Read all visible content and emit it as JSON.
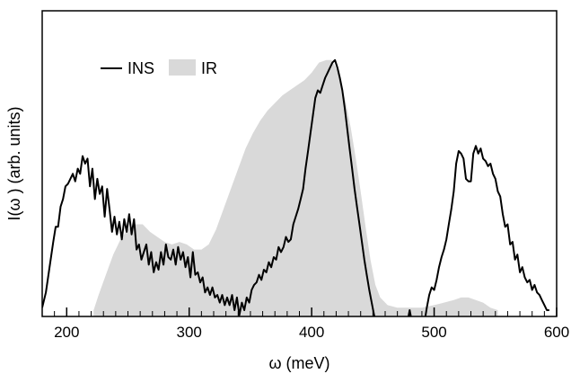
{
  "chart_data": {
    "type": "line",
    "xlabel": "ω (meV)",
    "ylabel": "I(ω ) (arb. units)",
    "xlim": [
      180,
      600
    ],
    "ylim": [
      0,
      1
    ],
    "x_ticks": [
      200,
      300,
      400,
      500,
      600
    ],
    "x_minor_step": 10,
    "legend_position": "top-left",
    "series": [
      {
        "name": "INS",
        "style": "line",
        "color": "#000000",
        "points": [
          [
            180,
            0.01
          ],
          [
            183,
            0.07
          ],
          [
            186,
            0.17
          ],
          [
            189,
            0.27
          ],
          [
            191,
            0.33
          ],
          [
            193,
            0.33
          ],
          [
            195,
            0.41
          ],
          [
            197,
            0.44
          ],
          [
            199,
            0.49
          ],
          [
            201,
            0.5
          ],
          [
            203,
            0.52
          ],
          [
            205,
            0.54
          ],
          [
            207,
            0.51
          ],
          [
            209,
            0.56
          ],
          [
            211,
            0.54
          ],
          [
            213,
            0.61
          ],
          [
            215,
            0.58
          ],
          [
            217,
            0.6
          ],
          [
            219,
            0.49
          ],
          [
            221,
            0.56
          ],
          [
            223,
            0.44
          ],
          [
            225,
            0.52
          ],
          [
            227,
            0.46
          ],
          [
            229,
            0.49
          ],
          [
            231,
            0.37
          ],
          [
            233,
            0.48
          ],
          [
            235,
            0.4
          ],
          [
            237,
            0.31
          ],
          [
            239,
            0.37
          ],
          [
            241,
            0.3
          ],
          [
            243,
            0.35
          ],
          [
            245,
            0.28
          ],
          [
            247,
            0.36
          ],
          [
            249,
            0.31
          ],
          [
            251,
            0.38
          ],
          [
            253,
            0.3
          ],
          [
            255,
            0.36
          ],
          [
            257,
            0.24
          ],
          [
            259,
            0.26
          ],
          [
            261,
            0.2
          ],
          [
            263,
            0.23
          ],
          [
            265,
            0.26
          ],
          [
            267,
            0.18
          ],
          [
            269,
            0.23
          ],
          [
            271,
            0.15
          ],
          [
            273,
            0.19
          ],
          [
            275,
            0.16
          ],
          [
            277,
            0.23
          ],
          [
            279,
            0.18
          ],
          [
            281,
            0.26
          ],
          [
            283,
            0.21
          ],
          [
            285,
            0.2
          ],
          [
            287,
            0.24
          ],
          [
            289,
            0.18
          ],
          [
            291,
            0.25
          ],
          [
            293,
            0.2
          ],
          [
            295,
            0.23
          ],
          [
            297,
            0.17
          ],
          [
            299,
            0.21
          ],
          [
            301,
            0.13
          ],
          [
            303,
            0.23
          ],
          [
            305,
            0.14
          ],
          [
            307,
            0.15
          ],
          [
            309,
            0.11
          ],
          [
            311,
            0.13
          ],
          [
            313,
            0.07
          ],
          [
            315,
            0.09
          ],
          [
            317,
            0.06
          ],
          [
            319,
            0.09
          ],
          [
            321,
            0.05
          ],
          [
            323,
            0.06
          ],
          [
            325,
            0.03
          ],
          [
            327,
            0.06
          ],
          [
            329,
            0.02
          ],
          [
            331,
            0.05
          ],
          [
            333,
            0.02
          ],
          [
            335,
            0.06
          ],
          [
            337,
            0.0
          ],
          [
            339,
            0.05
          ],
          [
            341,
            -0.02
          ],
          [
            343,
            0.03
          ],
          [
            345,
            0.0
          ],
          [
            347,
            0.05
          ],
          [
            349,
            0.03
          ],
          [
            351,
            0.08
          ],
          [
            353,
            0.1
          ],
          [
            355,
            0.11
          ],
          [
            357,
            0.14
          ],
          [
            359,
            0.12
          ],
          [
            361,
            0.16
          ],
          [
            363,
            0.15
          ],
          [
            365,
            0.19
          ],
          [
            367,
            0.17
          ],
          [
            369,
            0.21
          ],
          [
            371,
            0.2
          ],
          [
            373,
            0.25
          ],
          [
            375,
            0.23
          ],
          [
            377,
            0.25
          ],
          [
            379,
            0.29
          ],
          [
            381,
            0.27
          ],
          [
            383,
            0.28
          ],
          [
            385,
            0.34
          ],
          [
            387,
            0.37
          ],
          [
            389,
            0.4
          ],
          [
            391,
            0.44
          ],
          [
            393,
            0.48
          ],
          [
            395,
            0.56
          ],
          [
            397,
            0.63
          ],
          [
            399,
            0.7
          ],
          [
            401,
            0.77
          ],
          [
            403,
            0.84
          ],
          [
            405,
            0.87
          ],
          [
            407,
            0.86
          ],
          [
            409,
            0.89
          ],
          [
            411,
            0.92
          ],
          [
            413,
            0.94
          ],
          [
            415,
            0.96
          ],
          [
            417,
            0.98
          ],
          [
            419,
            0.99
          ],
          [
            421,
            0.96
          ],
          [
            423,
            0.92
          ],
          [
            425,
            0.87
          ],
          [
            427,
            0.8
          ],
          [
            429,
            0.72
          ],
          [
            431,
            0.64
          ],
          [
            433,
            0.56
          ],
          [
            435,
            0.48
          ],
          [
            437,
            0.41
          ],
          [
            439,
            0.34
          ],
          [
            441,
            0.27
          ],
          [
            443,
            0.2
          ],
          [
            445,
            0.14
          ],
          [
            447,
            0.08
          ],
          [
            449,
            0.03
          ],
          [
            451,
            -0.02
          ],
          [
            453,
            -0.05
          ]
        ],
        "points_b": [
          [
            478,
            -0.05
          ],
          [
            480,
            0.0
          ],
          [
            482,
            -0.05
          ]
        ],
        "points_c": [
          [
            492,
            -0.05
          ],
          [
            494,
            0.01
          ],
          [
            496,
            0.06
          ],
          [
            498,
            0.09
          ],
          [
            500,
            0.08
          ],
          [
            502,
            0.12
          ],
          [
            504,
            0.17
          ],
          [
            506,
            0.21
          ],
          [
            508,
            0.24
          ],
          [
            510,
            0.28
          ],
          [
            512,
            0.34
          ],
          [
            514,
            0.4
          ],
          [
            516,
            0.47
          ],
          [
            518,
            0.58
          ],
          [
            520,
            0.63
          ],
          [
            522,
            0.62
          ],
          [
            524,
            0.6
          ],
          [
            526,
            0.52
          ],
          [
            528,
            0.51
          ],
          [
            530,
            0.51
          ],
          [
            532,
            0.62
          ],
          [
            534,
            0.65
          ],
          [
            536,
            0.62
          ],
          [
            538,
            0.64
          ],
          [
            540,
            0.6
          ],
          [
            542,
            0.59
          ],
          [
            544,
            0.57
          ],
          [
            546,
            0.58
          ],
          [
            548,
            0.54
          ],
          [
            550,
            0.52
          ],
          [
            552,
            0.47
          ],
          [
            554,
            0.45
          ],
          [
            556,
            0.38
          ],
          [
            558,
            0.33
          ],
          [
            560,
            0.34
          ],
          [
            562,
            0.26
          ],
          [
            564,
            0.27
          ],
          [
            566,
            0.2
          ],
          [
            568,
            0.22
          ],
          [
            570,
            0.15
          ],
          [
            572,
            0.17
          ],
          [
            574,
            0.13
          ],
          [
            576,
            0.11
          ],
          [
            578,
            0.12
          ],
          [
            580,
            0.08
          ],
          [
            582,
            0.1
          ],
          [
            584,
            0.07
          ],
          [
            586,
            0.06
          ],
          [
            588,
            0.04
          ],
          [
            590,
            0.02
          ],
          [
            592,
            0.0
          ],
          [
            594,
            0.0
          ]
        ]
      },
      {
        "name": "IR",
        "style": "filled",
        "color": "#d9d9d9",
        "points": [
          [
            222,
            0.0
          ],
          [
            226,
            0.06
          ],
          [
            232,
            0.14
          ],
          [
            238,
            0.22
          ],
          [
            244,
            0.28
          ],
          [
            250,
            0.32
          ],
          [
            256,
            0.34
          ],
          [
            262,
            0.34
          ],
          [
            268,
            0.31
          ],
          [
            274,
            0.29
          ],
          [
            280,
            0.27
          ],
          [
            286,
            0.26
          ],
          [
            292,
            0.27
          ],
          [
            298,
            0.26
          ],
          [
            304,
            0.24
          ],
          [
            310,
            0.24
          ],
          [
            316,
            0.26
          ],
          [
            322,
            0.32
          ],
          [
            328,
            0.4
          ],
          [
            334,
            0.48
          ],
          [
            340,
            0.56
          ],
          [
            346,
            0.64
          ],
          [
            352,
            0.7
          ],
          [
            358,
            0.75
          ],
          [
            364,
            0.79
          ],
          [
            370,
            0.82
          ],
          [
            376,
            0.85
          ],
          [
            382,
            0.87
          ],
          [
            388,
            0.89
          ],
          [
            394,
            0.91
          ],
          [
            400,
            0.94
          ],
          [
            406,
            0.98
          ],
          [
            412,
            0.99
          ],
          [
            416,
            0.99
          ],
          [
            420,
            0.96
          ],
          [
            424,
            0.9
          ],
          [
            428,
            0.82
          ],
          [
            432,
            0.72
          ],
          [
            436,
            0.6
          ],
          [
            440,
            0.47
          ],
          [
            444,
            0.33
          ],
          [
            448,
            0.2
          ],
          [
            452,
            0.1
          ],
          [
            456,
            0.05
          ],
          [
            462,
            0.02
          ],
          [
            470,
            0.01
          ],
          [
            480,
            0.01
          ],
          [
            490,
            0.01
          ],
          [
            500,
            0.02
          ],
          [
            508,
            0.03
          ],
          [
            516,
            0.04
          ],
          [
            522,
            0.05
          ],
          [
            528,
            0.05
          ],
          [
            534,
            0.04
          ],
          [
            540,
            0.03
          ],
          [
            546,
            0.01
          ],
          [
            552,
            0.0
          ]
        ]
      }
    ],
    "legend": {
      "ins_label": "INS",
      "ir_label": "IR"
    }
  }
}
